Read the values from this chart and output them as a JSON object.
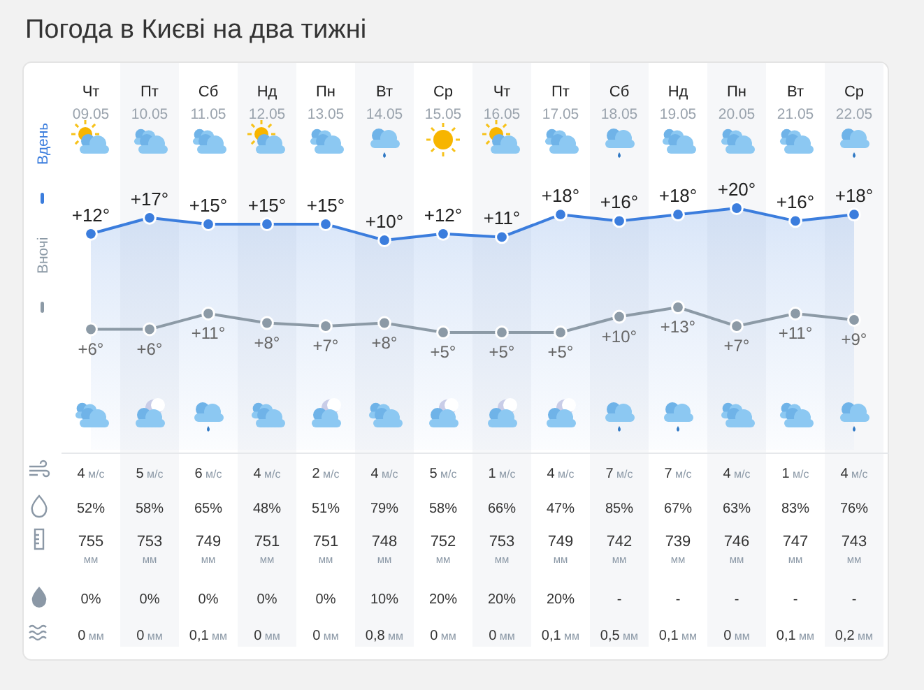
{
  "chart_data": [
    {
      "type": "area",
      "title": "Погода в Києві на два тижні",
      "categories": [
        "Чт 09.05",
        "Пт 10.05",
        "Сб 11.05",
        "Нд 12.05",
        "Пн 13.05",
        "Вт 14.05",
        "Ср 15.05",
        "Чт 16.05",
        "Пт 17.05",
        "Сб 18.05",
        "Нд 19.05",
        "Пн 20.05",
        "Вт 21.05",
        "Ср 22.05"
      ],
      "series": [
        {
          "name": "Вдень",
          "color": "#3b7ddd",
          "values": [
            12,
            17,
            15,
            15,
            15,
            10,
            12,
            11,
            18,
            16,
            18,
            20,
            16,
            18
          ],
          "value_labels": [
            "+12°",
            "+17°",
            "+15°",
            "+15°",
            "+15°",
            "+10°",
            "+12°",
            "+11°",
            "+18°",
            "+16°",
            "+18°",
            "+20°",
            "+16°",
            "+18°"
          ]
        }
      ],
      "marker": "circle",
      "legend": "left"
    },
    {
      "type": "line",
      "categories": [
        null,
        null,
        null,
        null,
        null,
        null,
        null,
        null,
        null,
        null,
        null,
        null,
        null,
        null
      ],
      "series": [
        {
          "name": "Вночі",
          "color": "#8c9aa6",
          "values": [
            6,
            6,
            11,
            8,
            7,
            8,
            5,
            5,
            5,
            10,
            13,
            7,
            11,
            9
          ],
          "value_labels": [
            "+6°",
            "+6°",
            "+11°",
            "+8°",
            "+7°",
            "+8°",
            "+5°",
            "+5°",
            "+5°",
            "+10°",
            "+13°",
            "+7°",
            "+11°",
            "+9°"
          ]
        }
      ],
      "marker": "circle",
      "legend": "left"
    },
    {
      "type": "other",
      "annotations": [
        "4 м/с",
        "5 м/с",
        "6 м/с",
        "4 м/с",
        "2 м/с",
        "4 м/с",
        "5 м/с",
        "1 м/с",
        "4 м/с",
        "7 м/с",
        "7 м/с",
        "4 м/с",
        "1 м/с",
        "4 м/с",
        "52%",
        "58%",
        "65%",
        "48%",
        "51%",
        "79%",
        "58%",
        "66%",
        "47%",
        "85%",
        "67%",
        "63%",
        "83%",
        "76%",
        "755 мм",
        "753 мм",
        "749 мм",
        "751 мм",
        "751 мм",
        "748 мм",
        "752 мм",
        "753 мм",
        "749 мм",
        "742 мм",
        "739 мм",
        "746 мм",
        "747 мм",
        "743 мм",
        "0%",
        "0%",
        "0%",
        "0%",
        "0%",
        "10%",
        "20%",
        "20%",
        "20%",
        "-",
        "-",
        "-",
        "-",
        "-",
        "0 мм",
        "0 мм",
        "0,1 мм",
        "0 мм",
        "0 мм",
        "0,8 мм",
        "0 мм",
        "0 мм",
        "0,1 мм",
        "0,5 мм",
        "0,1 мм",
        "0 мм",
        "0,1 мм",
        "0,2 мм"
      ]
    }
  ]
}
